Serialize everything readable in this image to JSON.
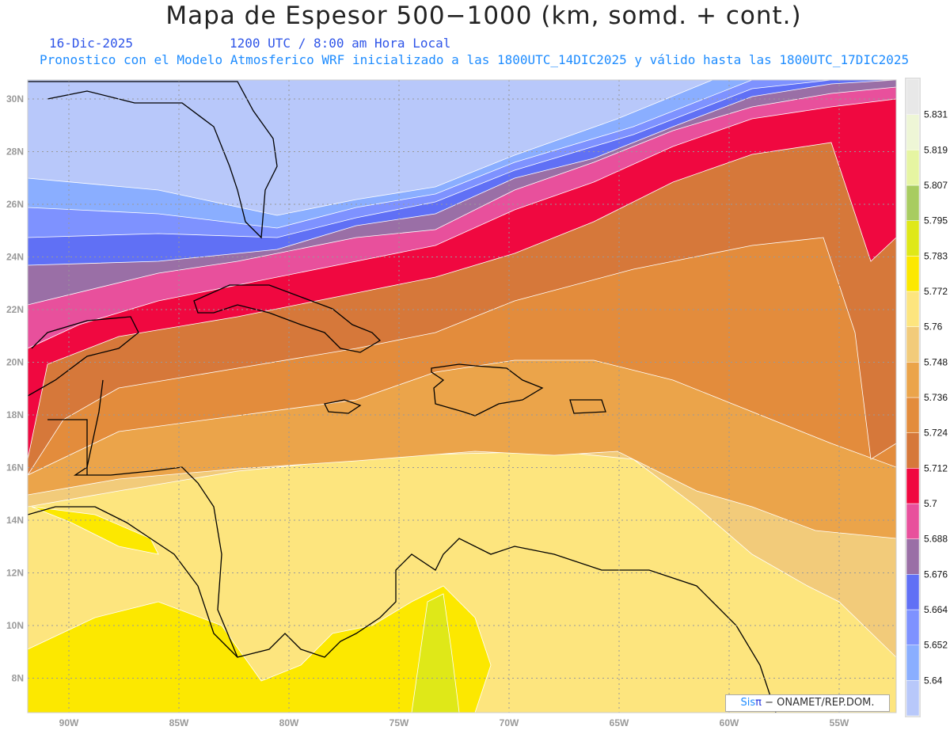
{
  "title": "Mapa de Espesor 500−1000 (km, somd. + cont.)",
  "date": "16-Dic-2025",
  "time": "1200 UTC / 8:00 am Hora Local",
  "description": "Pronostico con el Modelo Atmosferico WRF inicializado a las 1800UTC_14DIC2025 y válido hasta las  1800UTC_17DIC2025",
  "lat_labels": [
    "30N",
    "28N",
    "26N",
    "24N",
    "22N",
    "20N",
    "18N",
    "16N",
    "14N",
    "12N",
    "10N",
    "8N"
  ],
  "lon_labels": [
    "90W",
    "85W",
    "80W",
    "75W",
    "70W",
    "65W",
    "60W",
    "55W"
  ],
  "colorbar": {
    "labels": [
      "5.64",
      "5.652",
      "5.664",
      "5.676",
      "5.688",
      "5.7",
      "5.712",
      "5.724",
      "5.736",
      "5.748",
      "5.76",
      "5.772",
      "5.783",
      "5.795",
      "5.807",
      "5.819",
      "5.831"
    ],
    "colors": [
      "#b8c8fa",
      "#8aaeff",
      "#7e92ff",
      "#6070f5",
      "#9a6fa6",
      "#e8509c",
      "#f00840",
      "#d6783a",
      "#e38c3c",
      "#eba44a",
      "#f2cb7a",
      "#fde57e",
      "#fce800",
      "#dfe818",
      "#a8cc60",
      "#e6f5a2",
      "#eef6d6",
      "#e8e8e8"
    ]
  },
  "credit": {
    "brand": "Sis",
    "pi": "π",
    "org": " − ONAMET/REP.DOM."
  }
}
